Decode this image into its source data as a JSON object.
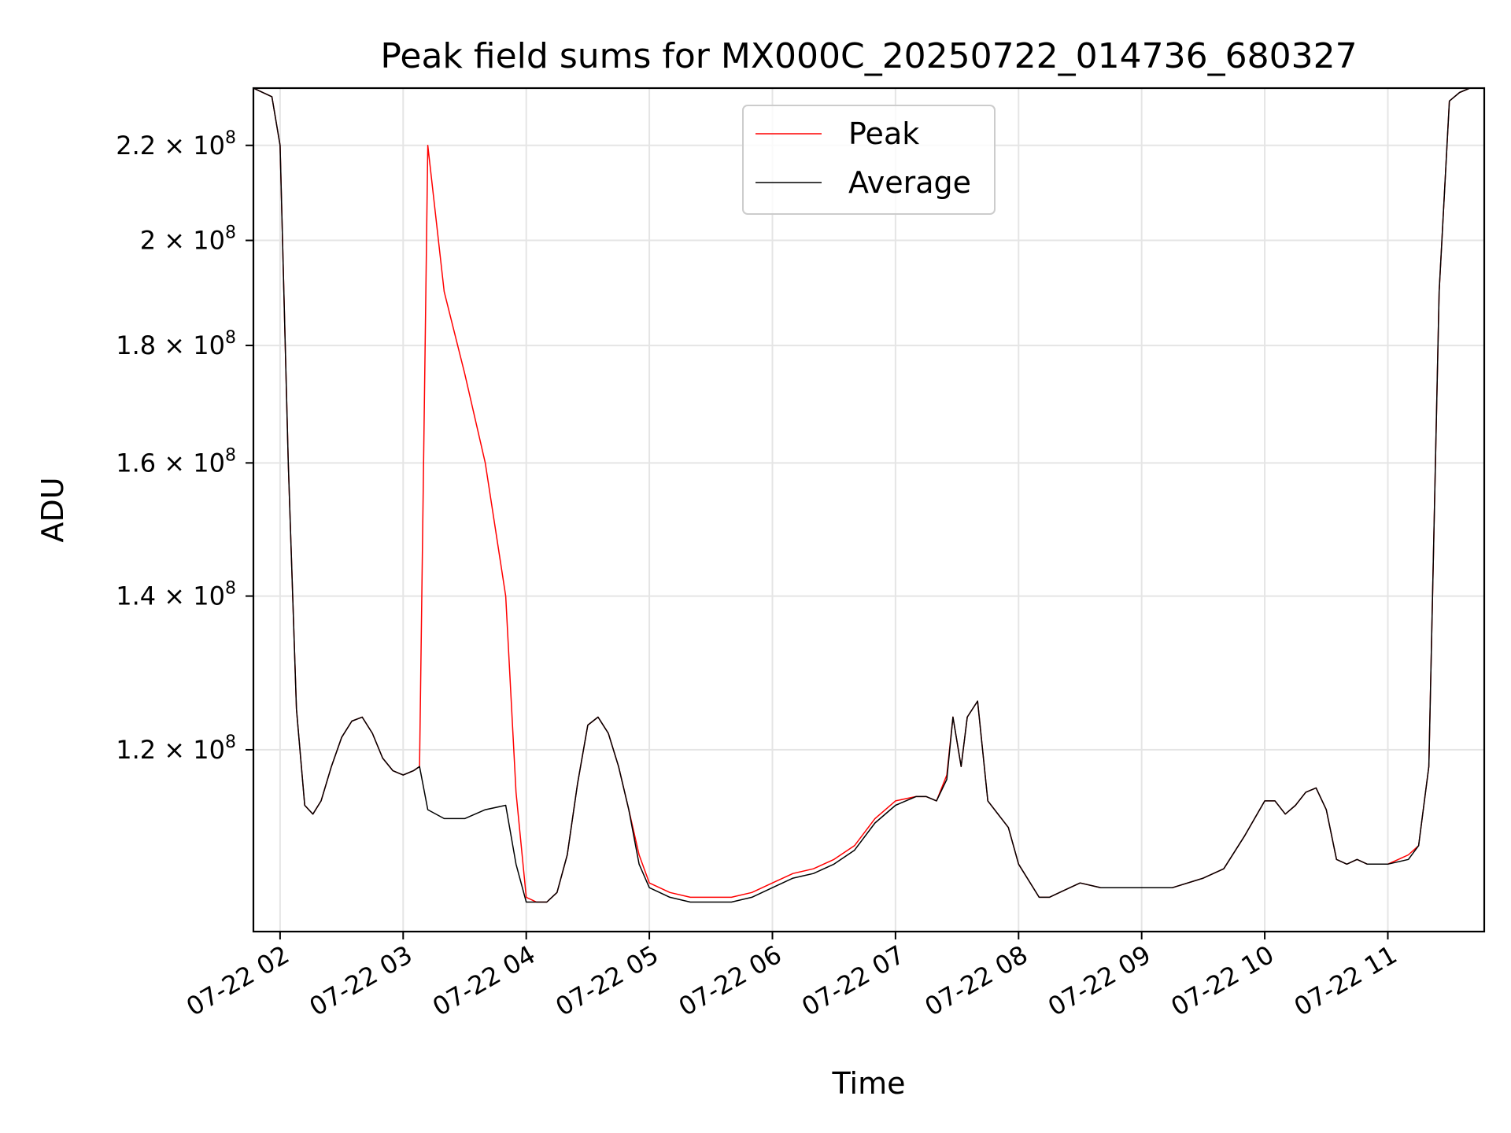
{
  "chart_data": {
    "type": "line",
    "title": "Peak field sums for MX000C_20250722_014736_680327",
    "xlabel": "Time",
    "ylabel": "ADU",
    "y_scale": "log",
    "grid": true,
    "legend_position": "top-center",
    "xlim": [
      "2025-07-22 01:47",
      "2025-07-22 11:47"
    ],
    "ylim": [
      100000000.0,
      233000000.0
    ],
    "x_ticks": [
      {
        "value": "2025-07-22 02:00",
        "label": "07-22 02"
      },
      {
        "value": "2025-07-22 03:00",
        "label": "07-22 03"
      },
      {
        "value": "2025-07-22 04:00",
        "label": "07-22 04"
      },
      {
        "value": "2025-07-22 05:00",
        "label": "07-22 05"
      },
      {
        "value": "2025-07-22 06:00",
        "label": "07-22 06"
      },
      {
        "value": "2025-07-22 07:00",
        "label": "07-22 07"
      },
      {
        "value": "2025-07-22 08:00",
        "label": "07-22 08"
      },
      {
        "value": "2025-07-22 09:00",
        "label": "07-22 09"
      },
      {
        "value": "2025-07-22 10:00",
        "label": "07-22 10"
      },
      {
        "value": "2025-07-22 11:00",
        "label": "07-22 11"
      }
    ],
    "y_ticks": [
      {
        "value": 120000000.0,
        "mantissa": "1.2",
        "exp": "8"
      },
      {
        "value": 140000000.0,
        "mantissa": "1.4",
        "exp": "8"
      },
      {
        "value": 160000000.0,
        "mantissa": "1.6",
        "exp": "8"
      },
      {
        "value": 180000000.0,
        "mantissa": "1.8",
        "exp": "8"
      },
      {
        "value": 200000000.0,
        "mantissa": "2",
        "exp": "8"
      },
      {
        "value": 220000000.0,
        "mantissa": "2.2",
        "exp": "8"
      }
    ],
    "series": [
      {
        "name": "Peak",
        "color": "#ff0000",
        "x": [
          "2025-07-22 01:47",
          "2025-07-22 01:56",
          "2025-07-22 02:00",
          "2025-07-22 02:04",
          "2025-07-22 02:08",
          "2025-07-22 02:12",
          "2025-07-22 02:16",
          "2025-07-22 02:20",
          "2025-07-22 02:25",
          "2025-07-22 02:30",
          "2025-07-22 02:35",
          "2025-07-22 02:40",
          "2025-07-22 02:45",
          "2025-07-22 02:50",
          "2025-07-22 02:55",
          "2025-07-22 03:00",
          "2025-07-22 03:05",
          "2025-07-22 03:08",
          "2025-07-22 03:12",
          "2025-07-22 03:20",
          "2025-07-22 03:30",
          "2025-07-22 03:40",
          "2025-07-22 03:50",
          "2025-07-22 03:55",
          "2025-07-22 04:00",
          "2025-07-22 04:05",
          "2025-07-22 04:10",
          "2025-07-22 04:15",
          "2025-07-22 04:20",
          "2025-07-22 04:25",
          "2025-07-22 04:30",
          "2025-07-22 04:35",
          "2025-07-22 04:40",
          "2025-07-22 04:45",
          "2025-07-22 04:50",
          "2025-07-22 04:55",
          "2025-07-22 05:00",
          "2025-07-22 05:10",
          "2025-07-22 05:20",
          "2025-07-22 05:30",
          "2025-07-22 05:40",
          "2025-07-22 05:50",
          "2025-07-22 06:00",
          "2025-07-22 06:10",
          "2025-07-22 06:20",
          "2025-07-22 06:30",
          "2025-07-22 06:40",
          "2025-07-22 06:50",
          "2025-07-22 07:00",
          "2025-07-22 07:10",
          "2025-07-22 07:15",
          "2025-07-22 07:20",
          "2025-07-22 07:25",
          "2025-07-22 07:28",
          "2025-07-22 07:32",
          "2025-07-22 07:35",
          "2025-07-22 07:40",
          "2025-07-22 07:45",
          "2025-07-22 07:55",
          "2025-07-22 08:00",
          "2025-07-22 08:10",
          "2025-07-22 08:15",
          "2025-07-22 08:20",
          "2025-07-22 08:25",
          "2025-07-22 08:30",
          "2025-07-22 08:40",
          "2025-07-22 08:50",
          "2025-07-22 09:00",
          "2025-07-22 09:15",
          "2025-07-22 09:30",
          "2025-07-22 09:40",
          "2025-07-22 09:50",
          "2025-07-22 10:00",
          "2025-07-22 10:05",
          "2025-07-22 10:10",
          "2025-07-22 10:15",
          "2025-07-22 10:20",
          "2025-07-22 10:25",
          "2025-07-22 10:30",
          "2025-07-22 10:35",
          "2025-07-22 10:40",
          "2025-07-22 10:45",
          "2025-07-22 10:50",
          "2025-07-22 11:00",
          "2025-07-22 11:10",
          "2025-07-22 11:15",
          "2025-07-22 11:20",
          "2025-07-22 11:25",
          "2025-07-22 11:30",
          "2025-07-22 11:35",
          "2025-07-22 11:40",
          "2025-07-22 11:47"
        ],
        "y": [
          233000000.0,
          231000000.0,
          220000000.0,
          160000000.0,
          125000000.0,
          113500000.0,
          112500000.0,
          114000000.0,
          118000000.0,
          121500000.0,
          123500000.0,
          124000000.0,
          122000000.0,
          119000000.0,
          117500000.0,
          117000000.0,
          117500000.0,
          118000000.0,
          220000000.0,
          190000000.0,
          175000000.0,
          160000000.0,
          140000000.0,
          115000000.0,
          103500000.0,
          103000000.0,
          103000000.0,
          104000000.0,
          108000000.0,
          116000000.0,
          123000000.0,
          124000000.0,
          122000000.0,
          118000000.0,
          113000000.0,
          108000000.0,
          105000000.0,
          104000000.0,
          103500000.0,
          103500000.0,
          103500000.0,
          104000000.0,
          105000000.0,
          106000000.0,
          106500000.0,
          107500000.0,
          109000000.0,
          112000000.0,
          114000000.0,
          114500000.0,
          114500000.0,
          114000000.0,
          117000000.0,
          124000000.0,
          118000000.0,
          124000000.0,
          126000000.0,
          114000000.0,
          111000000.0,
          107000000.0,
          103500000.0,
          103500000.0,
          104000000.0,
          104500000.0,
          105000000.0,
          104500000.0,
          104500000.0,
          104500000.0,
          104500000.0,
          105500000.0,
          106500000.0,
          110000000.0,
          114000000.0,
          114000000.0,
          112500000.0,
          113500000.0,
          115000000.0,
          115500000.0,
          113000000.0,
          107500000.0,
          107000000.0,
          107500000.0,
          107000000.0,
          107000000.0,
          108000000.0,
          109000000.0,
          118000000.0,
          190000000.0,
          230000000.0,
          232000000.0,
          233000000.0,
          233000000.0
        ]
      },
      {
        "name": "Average",
        "color": "#000000",
        "x": [
          "2025-07-22 01:47",
          "2025-07-22 01:56",
          "2025-07-22 02:00",
          "2025-07-22 02:04",
          "2025-07-22 02:08",
          "2025-07-22 02:12",
          "2025-07-22 02:16",
          "2025-07-22 02:20",
          "2025-07-22 02:25",
          "2025-07-22 02:30",
          "2025-07-22 02:35",
          "2025-07-22 02:40",
          "2025-07-22 02:45",
          "2025-07-22 02:50",
          "2025-07-22 02:55",
          "2025-07-22 03:00",
          "2025-07-22 03:05",
          "2025-07-22 03:08",
          "2025-07-22 03:12",
          "2025-07-22 03:20",
          "2025-07-22 03:30",
          "2025-07-22 03:40",
          "2025-07-22 03:50",
          "2025-07-22 03:55",
          "2025-07-22 04:00",
          "2025-07-22 04:05",
          "2025-07-22 04:10",
          "2025-07-22 04:15",
          "2025-07-22 04:20",
          "2025-07-22 04:25",
          "2025-07-22 04:30",
          "2025-07-22 04:35",
          "2025-07-22 04:40",
          "2025-07-22 04:45",
          "2025-07-22 04:50",
          "2025-07-22 04:55",
          "2025-07-22 05:00",
          "2025-07-22 05:10",
          "2025-07-22 05:20",
          "2025-07-22 05:30",
          "2025-07-22 05:40",
          "2025-07-22 05:50",
          "2025-07-22 06:00",
          "2025-07-22 06:10",
          "2025-07-22 06:20",
          "2025-07-22 06:30",
          "2025-07-22 06:40",
          "2025-07-22 06:50",
          "2025-07-22 07:00",
          "2025-07-22 07:10",
          "2025-07-22 07:15",
          "2025-07-22 07:20",
          "2025-07-22 07:25",
          "2025-07-22 07:28",
          "2025-07-22 07:32",
          "2025-07-22 07:35",
          "2025-07-22 07:40",
          "2025-07-22 07:45",
          "2025-07-22 07:55",
          "2025-07-22 08:00",
          "2025-07-22 08:10",
          "2025-07-22 08:15",
          "2025-07-22 08:20",
          "2025-07-22 08:25",
          "2025-07-22 08:30",
          "2025-07-22 08:40",
          "2025-07-22 08:50",
          "2025-07-22 09:00",
          "2025-07-22 09:15",
          "2025-07-22 09:30",
          "2025-07-22 09:40",
          "2025-07-22 09:50",
          "2025-07-22 10:00",
          "2025-07-22 10:05",
          "2025-07-22 10:10",
          "2025-07-22 10:15",
          "2025-07-22 10:20",
          "2025-07-22 10:25",
          "2025-07-22 10:30",
          "2025-07-22 10:35",
          "2025-07-22 10:40",
          "2025-07-22 10:45",
          "2025-07-22 10:50",
          "2025-07-22 11:00",
          "2025-07-22 11:10",
          "2025-07-22 11:15",
          "2025-07-22 11:20",
          "2025-07-22 11:25",
          "2025-07-22 11:30",
          "2025-07-22 11:35",
          "2025-07-22 11:40",
          "2025-07-22 11:47"
        ],
        "y": [
          233000000.0,
          231000000.0,
          220000000.0,
          160000000.0,
          125000000.0,
          113500000.0,
          112500000.0,
          114000000.0,
          118000000.0,
          121500000.0,
          123500000.0,
          124000000.0,
          122000000.0,
          119000000.0,
          117500000.0,
          117000000.0,
          117500000.0,
          118000000.0,
          113000000.0,
          112000000.0,
          112000000.0,
          113000000.0,
          113500000.0,
          107000000.0,
          103000000.0,
          103000000.0,
          103000000.0,
          104000000.0,
          108000000.0,
          116000000.0,
          123000000.0,
          124000000.0,
          122000000.0,
          118000000.0,
          113000000.0,
          107000000.0,
          104500000.0,
          103500000.0,
          103000000.0,
          103000000.0,
          103000000.0,
          103500000.0,
          104500000.0,
          105500000.0,
          106000000.0,
          107000000.0,
          108500000.0,
          111500000.0,
          113500000.0,
          114500000.0,
          114500000.0,
          114000000.0,
          116500000.0,
          124000000.0,
          118000000.0,
          124000000.0,
          126000000.0,
          114000000.0,
          111000000.0,
          107000000.0,
          103500000.0,
          103500000.0,
          104000000.0,
          104500000.0,
          105000000.0,
          104500000.0,
          104500000.0,
          104500000.0,
          104500000.0,
          105500000.0,
          106500000.0,
          110000000.0,
          114000000.0,
          114000000.0,
          112500000.0,
          113500000.0,
          115000000.0,
          115500000.0,
          113000000.0,
          107500000.0,
          107000000.0,
          107500000.0,
          107000000.0,
          107000000.0,
          107500000.0,
          109000000.0,
          118000000.0,
          190000000.0,
          230000000.0,
          232000000.0,
          233000000.0,
          233000000.0
        ]
      }
    ]
  }
}
